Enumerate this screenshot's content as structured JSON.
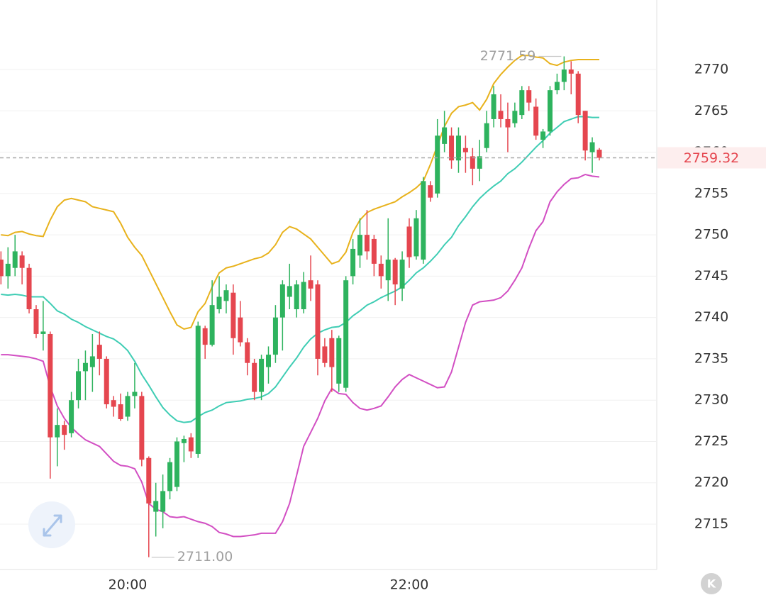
{
  "chart_data": {
    "type": "candlestick",
    "categories": [
      null,
      null,
      null,
      null,
      null,
      null,
      null,
      null,
      null,
      null,
      null,
      null,
      null,
      null,
      null,
      null,
      null,
      null,
      "20:00",
      null,
      null,
      null,
      null,
      null,
      null,
      null,
      null,
      null,
      null,
      null,
      null,
      null,
      null,
      null,
      null,
      null,
      null,
      null,
      null,
      null,
      null,
      null,
      null,
      null,
      null,
      null,
      null,
      null,
      null,
      null,
      null,
      null,
      null,
      null,
      null,
      null,
      null,
      null,
      "22:00",
      null,
      null,
      null,
      null,
      null,
      null,
      null,
      null,
      null,
      null,
      null,
      null,
      null,
      null,
      null,
      null,
      null,
      null,
      null,
      null,
      null,
      null,
      null,
      null,
      null,
      null,
      null
    ],
    "open": [
      2747,
      2745,
      2746,
      2747.5,
      2746,
      2741,
      2738,
      2738,
      2725.5,
      2727,
      2726,
      2730,
      2733.5,
      2734,
      2736.7,
      2735,
      2730,
      2729.5,
      2728,
      2730.5,
      2730.5,
      2723,
      2716.5,
      2716.5,
      2719,
      2719.5,
      2724.8,
      2725.5,
      2723.5,
      2738.7,
      2736.7,
      2741,
      2742,
      2743,
      2740,
      2737,
      2734.5,
      2731,
      2734,
      2735.5,
      2740,
      2742.5,
      2741,
      2741,
      2744.5,
      2744,
      2736.5,
      2737.5,
      2732,
      2731.5,
      2745,
      2747.5,
      2750,
      2749.5,
      2746.5,
      2744.5,
      2747,
      2743.5,
      2751,
      2747.4,
      2747,
      2756,
      2755,
      2761,
      2762,
      2759,
      2760.5,
      2759.5,
      2758,
      2760.5,
      2764,
      2765,
      2764,
      2763.5,
      2764.5,
      2767.5,
      2765.5,
      2761.5,
      2762.5,
      2767.5,
      2768.5,
      2770,
      2769.5,
      2765,
      2760,
      2760.3
    ],
    "high": [
      2748,
      2748.5,
      2750,
      2748,
      2746.5,
      2741.5,
      2742,
      2738.3,
      2729,
      2727.5,
      2731,
      2735,
      2736,
      2738,
      2738.3,
      2735.3,
      2730.5,
      2730.8,
      2731,
      2734.5,
      2731,
      2723.2,
      2720,
      2721,
      2723,
      2725.5,
      2725.7,
      2726,
      2739.5,
      2739,
      2744.5,
      2745,
      2744,
      2744,
      2742,
      2737.5,
      2735,
      2735.5,
      2736.5,
      2741.5,
      2744.5,
      2746.5,
      2744.5,
      2745.5,
      2747.5,
      2744.5,
      2737.5,
      2738.5,
      2737.8,
      2745,
      2749.5,
      2752,
      2753,
      2750,
      2747.5,
      2752,
      2747.2,
      2748,
      2752,
      2753,
      2757,
      2756.5,
      2764,
      2765,
      2763,
      2763,
      2762,
      2760.5,
      2761.5,
      2765,
      2768,
      2767,
      2766,
      2766,
      2768,
      2768,
      2766.5,
      2762.8,
      2768,
      2769.5,
      2771.59,
      2771,
      2769.8,
      2765,
      2761.8,
      2760.5
    ],
    "low": [
      2744,
      2743.5,
      2745,
      2744,
      2740.5,
      2737.5,
      2736,
      2720.5,
      2722,
      2724,
      2725.5,
      2729,
      2730,
      2731,
      2733,
      2729,
      2728,
      2727.5,
      2727.5,
      2729,
      2722,
      2711,
      2713.5,
      2714.5,
      2718,
      2719,
      2722.5,
      2723,
      2723,
      2735,
      2736.5,
      2740.5,
      2740.5,
      2735.5,
      2736.5,
      2733,
      2730,
      2730,
      2732,
      2734.5,
      2736,
      2741,
      2740,
      2740.5,
      2742,
      2733,
      2734,
      2731,
      2731,
      2731,
      2744,
      2746,
      2747,
      2745,
      2743.5,
      2742,
      2741.5,
      2742,
      2746,
      2747,
      2746.5,
      2754,
      2754.5,
      2760,
      2758,
      2757.5,
      2757.5,
      2756,
      2756.5,
      2760,
      2763,
      2763,
      2760,
      2763,
      2764,
      2765,
      2761.5,
      2760.5,
      2762,
      2767,
      2767.5,
      2767,
      2763.5,
      2759,
      2757.5,
      2759
    ],
    "close": [
      2745,
      2746.5,
      2748,
      2746,
      2741,
      2738,
      2738.3,
      2725.5,
      2727,
      2725.8,
      2730,
      2733.5,
      2734.5,
      2735.3,
      2735,
      2729.5,
      2729.2,
      2727.7,
      2730.5,
      2731,
      2722.8,
      2717.5,
      2717.8,
      2719,
      2722.5,
      2725,
      2725.3,
      2723.8,
      2739,
      2736.7,
      2741.5,
      2742.5,
      2743.3,
      2737.5,
      2737,
      2734.5,
      2731,
      2735,
      2735.5,
      2740,
      2744,
      2743.8,
      2744,
      2744.3,
      2743.5,
      2735,
      2734.5,
      2734,
      2737.5,
      2744.5,
      2748.3,
      2750,
      2748,
      2746.5,
      2745,
      2747,
      2744,
      2747,
      2747.3,
      2752,
      2756.5,
      2754.5,
      2762,
      2763,
      2759,
      2762,
      2760,
      2758,
      2759.5,
      2763.5,
      2767,
      2764,
      2763,
      2765,
      2767.5,
      2766,
      2762,
      2762.5,
      2767.5,
      2768.5,
      2770,
      2769.5,
      2764.5,
      2760.2,
      2761.2,
      2759.32
    ],
    "up_color": "#2eb35e",
    "down_color": "#e5464f",
    "lines": [
      {
        "color": "#e8b21c",
        "values": [
          2750.0,
          2749.9,
          2750.3,
          2750.4,
          2750.1,
          2749.9,
          2749.8,
          2751.8,
          2753.4,
          2754.2,
          2754.4,
          2754.2,
          2754.0,
          2753.4,
          2753.2,
          2753.0,
          2752.8,
          2751.4,
          2749.7,
          2748.5,
          2747.5,
          2745.8,
          2744.1,
          2742.4,
          2740.7,
          2739.1,
          2738.6,
          2738.8,
          2740.7,
          2741.7,
          2743.7,
          2745.4,
          2746.0,
          2746.2,
          2746.5,
          2746.8,
          2747.1,
          2747.3,
          2747.8,
          2748.8,
          2750.3,
          2751.0,
          2750.7,
          2750.1,
          2749.5,
          2748.5,
          2747.5,
          2746.5,
          2746.8,
          2747.9,
          2750.3,
          2751.8,
          2752.7,
          2753.1,
          2753.4,
          2753.7,
          2754.0,
          2754.6,
          2755.1,
          2755.7,
          2756.5,
          2758.5,
          2760.8,
          2763.1,
          2764.7,
          2765.5,
          2765.7,
          2766.0,
          2765.1,
          2766.4,
          2768.3,
          2769.4,
          2770.3,
          2771.1,
          2771.7,
          2771.7,
          2771.5,
          2771.4,
          2770.7,
          2770.5,
          2770.9,
          2771.1,
          2771.2,
          2771.2,
          2771.2,
          2771.2
        ]
      },
      {
        "color": "#3fcdb4",
        "values": [
          2742.8,
          2742.7,
          2742.8,
          2742.7,
          2742.5,
          2742.5,
          2742.5,
          2741.7,
          2740.8,
          2740.4,
          2739.8,
          2739.4,
          2738.9,
          2738.5,
          2738.1,
          2737.7,
          2737.4,
          2736.8,
          2736.0,
          2734.7,
          2733.1,
          2731.8,
          2730.4,
          2729.1,
          2728.2,
          2727.5,
          2727.3,
          2727.4,
          2728.0,
          2728.5,
          2728.8,
          2729.3,
          2729.7,
          2729.8,
          2729.9,
          2730.1,
          2730.2,
          2730.4,
          2730.8,
          2731.6,
          2732.8,
          2734.0,
          2735.1,
          2736.4,
          2737.4,
          2738.1,
          2738.5,
          2738.8,
          2738.9,
          2739.4,
          2740.2,
          2740.8,
          2741.5,
          2741.9,
          2742.4,
          2742.8,
          2743.2,
          2743.7,
          2744.5,
          2745.4,
          2746.0,
          2746.8,
          2747.7,
          2748.8,
          2749.7,
          2751.1,
          2752.2,
          2753.4,
          2754.4,
          2755.2,
          2755.9,
          2756.5,
          2757.4,
          2758.0,
          2758.8,
          2759.7,
          2760.6,
          2761.4,
          2762.3,
          2763.0,
          2763.7,
          2764.0,
          2764.3,
          2764.3,
          2764.2,
          2764.2
        ]
      },
      {
        "color": "#d24fc3",
        "values": [
          2735.5,
          2735.5,
          2735.4,
          2735.3,
          2735.2,
          2735.0,
          2734.7,
          2731.6,
          2729.3,
          2727.8,
          2726.7,
          2725.9,
          2725.2,
          2724.8,
          2724.4,
          2723.5,
          2722.6,
          2722.1,
          2722.0,
          2721.7,
          2720.1,
          2717.5,
          2716.8,
          2716.5,
          2715.9,
          2715.8,
          2715.9,
          2715.6,
          2715.3,
          2715.1,
          2714.7,
          2714.0,
          2713.8,
          2713.5,
          2713.5,
          2713.6,
          2713.7,
          2713.9,
          2713.9,
          2713.9,
          2715.3,
          2717.5,
          2720.9,
          2724.4,
          2726.1,
          2727.8,
          2729.9,
          2731.4,
          2730.8,
          2730.7,
          2729.7,
          2729.0,
          2728.8,
          2729.0,
          2729.3,
          2730.4,
          2731.6,
          2732.5,
          2733.1,
          2732.7,
          2732.3,
          2731.9,
          2731.5,
          2731.6,
          2733.4,
          2736.4,
          2739.4,
          2741.5,
          2741.9,
          2742.0,
          2742.1,
          2742.4,
          2743.2,
          2744.5,
          2746.0,
          2748.4,
          2750.5,
          2751.6,
          2754.0,
          2755.2,
          2756.1,
          2756.8,
          2756.9,
          2757.3,
          2757.1,
          2757.0
        ]
      }
    ],
    "ylim": [
      2709.51,
      2778.41
    ],
    "yticks": [
      2715,
      2720,
      2725,
      2730,
      2735,
      2740,
      2745,
      2750,
      2755,
      2760,
      2765,
      2770
    ],
    "grid": true,
    "last_price": 2759.32,
    "high_label": 2771.59,
    "low_label": {
      "value": 2711,
      "label": "2711.00"
    },
    "corner_button": "K"
  }
}
